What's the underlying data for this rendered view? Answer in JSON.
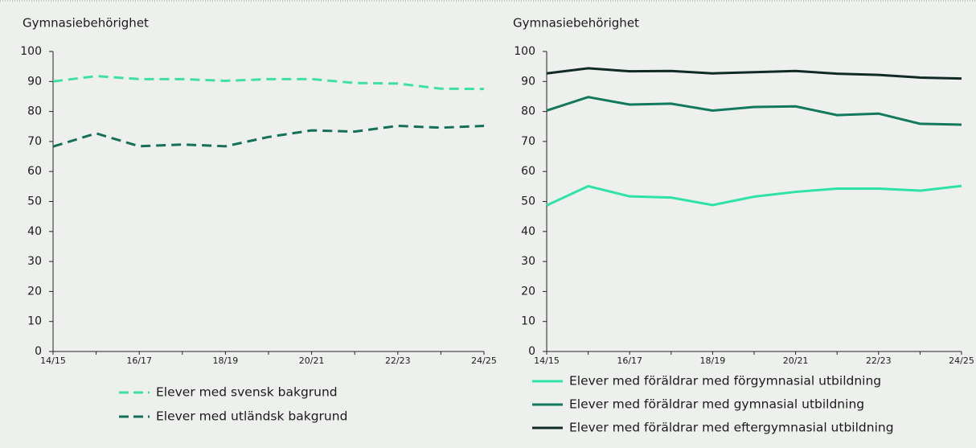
{
  "chart_data": [
    {
      "type": "line",
      "title": "Gymnasiebehörighet",
      "categories": [
        "14/15",
        null,
        "16/17",
        null,
        "18/19",
        null,
        "20/21",
        null,
        "22/23",
        null,
        "24/25"
      ],
      "line_style": "dashed",
      "series": [
        {
          "name": "Elever med svensk bakgrund",
          "color": "#3ee0a3",
          "values": [
            90,
            91.8,
            90.8,
            90.8,
            90.2,
            90.8,
            90.8,
            89.5,
            89.3,
            87.6,
            87.5
          ]
        },
        {
          "name": "Elever med utländsk bakgrund",
          "color": "#14705a",
          "values": [
            68.3,
            72.7,
            68.4,
            69,
            68.4,
            71.5,
            73.7,
            73.3,
            75.2,
            74.6,
            75.2
          ]
        }
      ],
      "ylim": [
        0,
        100
      ],
      "yticks": [
        0,
        10,
        20,
        30,
        40,
        50,
        60,
        70,
        80,
        90,
        100
      ],
      "grid": false
    },
    {
      "type": "line",
      "title": "Gymnasiebehörighet",
      "categories": [
        "14/15",
        null,
        "16/17",
        null,
        "18/19",
        null,
        "20/21",
        null,
        "22/23",
        null,
        "24/25"
      ],
      "line_style": "solid",
      "series": [
        {
          "name": "Elever med föräldrar med förgymnasial utbildning",
          "color": "#2ee3a5",
          "values": [
            48.7,
            55.1,
            51.7,
            51.3,
            48.8,
            51.6,
            53.2,
            54.3,
            54.3,
            53.6,
            55.2
          ]
        },
        {
          "name": "Elever med föräldrar med gymnasial utbildning",
          "color": "#13795d",
          "values": [
            80.3,
            84.8,
            82.3,
            82.6,
            80.3,
            81.5,
            81.7,
            78.8,
            79.3,
            75.9,
            75.6
          ]
        },
        {
          "name": "Elever med föräldrar med eftergymnasial utbildning",
          "color": "#102b25",
          "values": [
            92.7,
            94.4,
            93.4,
            93.5,
            92.7,
            93.1,
            93.5,
            92.6,
            92.2,
            91.3,
            91.0
          ]
        }
      ],
      "ylim": [
        0,
        100
      ],
      "yticks": [
        0,
        10,
        20,
        30,
        40,
        50,
        60,
        70,
        80,
        90,
        100
      ],
      "grid": false
    }
  ]
}
